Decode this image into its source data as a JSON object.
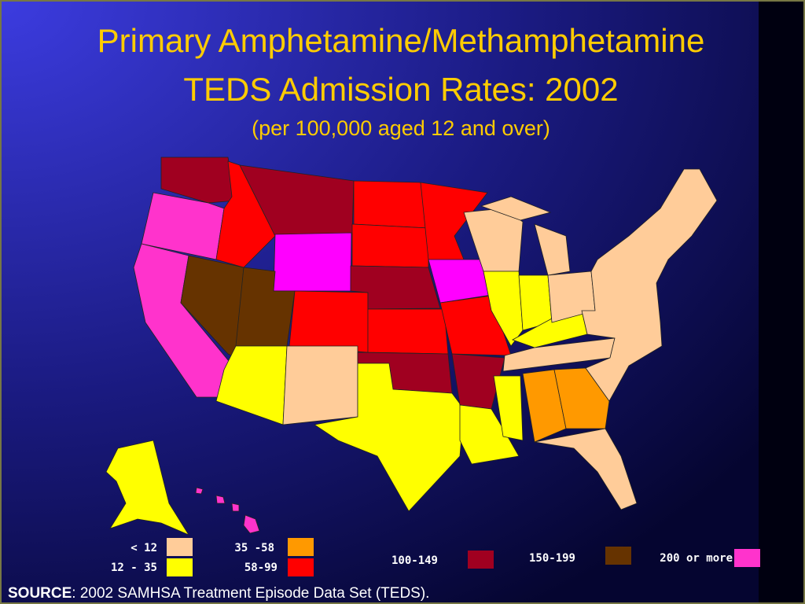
{
  "header": {
    "title_line1": "Primary Amphetamine/Methamphetamine",
    "title_line2": "TEDS Admission Rates: 2002",
    "subtitle": "(per 100,000 aged 12 and over)"
  },
  "legend": {
    "items": [
      {
        "label": "< 12",
        "color": "#ffcc99"
      },
      {
        "label": "12 - 35",
        "color": "#ffff00"
      },
      {
        "label": "35 -58",
        "color": "#ff9900"
      },
      {
        "label": "58-99",
        "color": "#ff0000"
      },
      {
        "label": "100-149",
        "color": "#a00020"
      },
      {
        "label": "150-199",
        "color": "#663300"
      },
      {
        "label": "200 or more",
        "color": "#ff33cc"
      }
    ]
  },
  "source": {
    "label": "SOURCE",
    "text": ": 2002 SAMHSA Treatment Episode Data Set (TEDS)."
  }
}
